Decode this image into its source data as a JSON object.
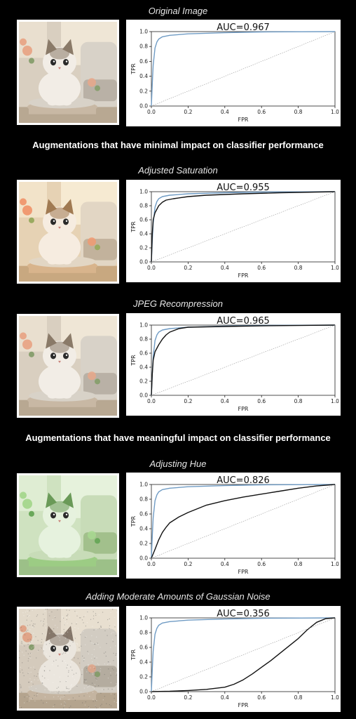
{
  "sections": {
    "minimal_heading": "Augmentations that have minimal impact on classifier performance",
    "meaningful_heading": "Augmentations that have meaningful impact on classifier performance"
  },
  "chart_data": [
    {
      "type": "line",
      "title": "Original Image",
      "auc_label": "AUC=0.967",
      "xlabel": "FPR",
      "ylabel": "TPR",
      "xlim": [
        0,
        1
      ],
      "ylim": [
        0,
        1
      ],
      "xticks": [
        "0.0",
        "0.2",
        "0.4",
        "0.6",
        "0.8",
        "1.0"
      ],
      "yticks": [
        "0.0",
        "0.2",
        "0.4",
        "0.6",
        "0.8",
        "1.0"
      ],
      "image_tint": "natural",
      "series": [
        {
          "color": "#6f9bc4",
          "x": [
            0,
            0.005,
            0.01,
            0.02,
            0.03,
            0.04,
            0.06,
            0.1,
            0.2,
            0.4,
            0.6,
            1.0
          ],
          "y": [
            0,
            0.3,
            0.55,
            0.78,
            0.86,
            0.9,
            0.93,
            0.95,
            0.97,
            0.985,
            0.995,
            1.0
          ]
        },
        {
          "color": "#9a9a9a",
          "dashed": true,
          "x": [
            0,
            1
          ],
          "y": [
            0,
            1
          ]
        }
      ]
    },
    {
      "type": "line",
      "title": "Adjusted Saturation",
      "auc_label": "AUC=0.955",
      "xlabel": "FPR",
      "ylabel": "TPR",
      "xlim": [
        0,
        1
      ],
      "ylim": [
        0,
        1
      ],
      "xticks": [
        "0.0",
        "0.2",
        "0.4",
        "0.6",
        "0.8",
        "1.0"
      ],
      "yticks": [
        "0.0",
        "0.2",
        "0.4",
        "0.6",
        "0.8",
        "1.0"
      ],
      "image_tint": "warm",
      "series": [
        {
          "color": "#6f9bc4",
          "x": [
            0,
            0.005,
            0.01,
            0.02,
            0.03,
            0.04,
            0.06,
            0.1,
            0.2,
            0.4,
            0.6,
            1.0
          ],
          "y": [
            0,
            0.3,
            0.55,
            0.78,
            0.86,
            0.9,
            0.93,
            0.95,
            0.97,
            0.985,
            0.995,
            1.0
          ]
        },
        {
          "color": "#111111",
          "x": [
            0,
            0.005,
            0.01,
            0.02,
            0.04,
            0.06,
            0.08,
            0.12,
            0.2,
            0.3,
            0.5,
            0.7,
            1.0
          ],
          "y": [
            0,
            0.4,
            0.6,
            0.7,
            0.8,
            0.85,
            0.88,
            0.9,
            0.93,
            0.95,
            0.97,
            0.985,
            1.0
          ]
        },
        {
          "color": "#9a9a9a",
          "dashed": true,
          "x": [
            0,
            1
          ],
          "y": [
            0,
            1
          ]
        }
      ]
    },
    {
      "type": "line",
      "title": "JPEG Recompression",
      "auc_label": "AUC=0.965",
      "xlabel": "FPR",
      "ylabel": "TPR",
      "xlim": [
        0,
        1
      ],
      "ylim": [
        0,
        1
      ],
      "xticks": [
        "0.0",
        "0.2",
        "0.4",
        "0.6",
        "0.8",
        "1.0"
      ],
      "yticks": [
        "0.0",
        "0.2",
        "0.4",
        "0.6",
        "0.8",
        "1.0"
      ],
      "image_tint": "natural",
      "series": [
        {
          "color": "#6f9bc4",
          "x": [
            0,
            0.005,
            0.01,
            0.02,
            0.03,
            0.04,
            0.06,
            0.1,
            0.2,
            0.4,
            0.6,
            1.0
          ],
          "y": [
            0,
            0.3,
            0.55,
            0.78,
            0.86,
            0.9,
            0.93,
            0.95,
            0.97,
            0.985,
            0.995,
            1.0
          ]
        },
        {
          "color": "#111111",
          "x": [
            0,
            0.005,
            0.01,
            0.02,
            0.04,
            0.06,
            0.08,
            0.1,
            0.15,
            0.2,
            0.4,
            0.6,
            1.0
          ],
          "y": [
            0,
            0.3,
            0.5,
            0.62,
            0.72,
            0.8,
            0.86,
            0.9,
            0.95,
            0.97,
            0.98,
            0.99,
            1.0
          ]
        },
        {
          "color": "#9a9a9a",
          "dashed": true,
          "x": [
            0,
            1
          ],
          "y": [
            0,
            1
          ]
        }
      ]
    },
    {
      "type": "line",
      "title": "Adjusting Hue",
      "auc_label": "AUC=0.826",
      "xlabel": "FPR",
      "ylabel": "TPR",
      "xlim": [
        0,
        1
      ],
      "ylim": [
        0,
        1
      ],
      "xticks": [
        "0.0",
        "0.2",
        "0.4",
        "0.6",
        "0.8",
        "1.0"
      ],
      "yticks": [
        "0.0",
        "0.2",
        "0.4",
        "0.6",
        "0.8",
        "1.0"
      ],
      "image_tint": "green",
      "series": [
        {
          "color": "#6f9bc4",
          "x": [
            0,
            0.005,
            0.01,
            0.02,
            0.03,
            0.04,
            0.06,
            0.1,
            0.2,
            0.4,
            0.6,
            1.0
          ],
          "y": [
            0,
            0.3,
            0.55,
            0.78,
            0.86,
            0.9,
            0.93,
            0.95,
            0.97,
            0.985,
            0.995,
            1.0
          ]
        },
        {
          "color": "#111111",
          "x": [
            0,
            0.02,
            0.04,
            0.06,
            0.08,
            0.1,
            0.15,
            0.2,
            0.3,
            0.4,
            0.5,
            0.6,
            0.7,
            0.8,
            0.9,
            1.0
          ],
          "y": [
            0,
            0.12,
            0.25,
            0.35,
            0.42,
            0.48,
            0.56,
            0.62,
            0.72,
            0.78,
            0.83,
            0.87,
            0.91,
            0.95,
            0.98,
            1.0
          ]
        },
        {
          "color": "#9a9a9a",
          "dashed": true,
          "x": [
            0,
            1
          ],
          "y": [
            0,
            1
          ]
        }
      ]
    },
    {
      "type": "line",
      "title": "Adding Moderate Amounts of Gaussian Noise",
      "auc_label": "AUC=0.356",
      "xlabel": "FPR",
      "ylabel": "TPR",
      "xlim": [
        0,
        1
      ],
      "ylim": [
        0,
        1
      ],
      "xticks": [
        "0.0",
        "0.2",
        "0.4",
        "0.6",
        "0.8",
        "1.0"
      ],
      "yticks": [
        "0.0",
        "0.2",
        "0.4",
        "0.6",
        "0.8",
        "1.0"
      ],
      "image_tint": "noisy",
      "series": [
        {
          "color": "#6f9bc4",
          "x": [
            0,
            0.005,
            0.01,
            0.02,
            0.03,
            0.04,
            0.06,
            0.1,
            0.2,
            0.4,
            0.6,
            1.0
          ],
          "y": [
            0,
            0.3,
            0.55,
            0.78,
            0.86,
            0.9,
            0.93,
            0.95,
            0.97,
            0.985,
            0.995,
            1.0
          ]
        },
        {
          "color": "#111111",
          "x": [
            0,
            0.1,
            0.2,
            0.3,
            0.4,
            0.45,
            0.5,
            0.55,
            0.6,
            0.65,
            0.7,
            0.75,
            0.8,
            0.85,
            0.9,
            0.95,
            1.0
          ],
          "y": [
            0,
            0.005,
            0.015,
            0.03,
            0.06,
            0.1,
            0.16,
            0.24,
            0.33,
            0.42,
            0.52,
            0.62,
            0.72,
            0.84,
            0.94,
            0.99,
            1.0
          ]
        },
        {
          "color": "#9a9a9a",
          "dashed": true,
          "x": [
            0,
            1
          ],
          "y": [
            0,
            1
          ]
        }
      ]
    }
  ]
}
